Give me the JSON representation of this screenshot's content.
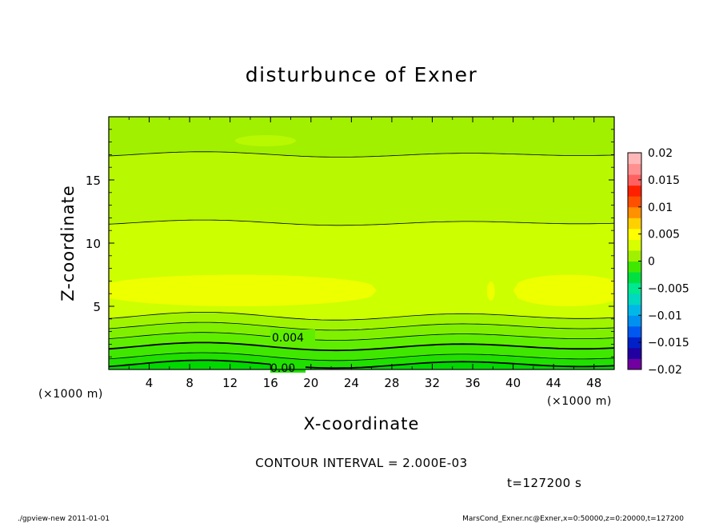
{
  "chart_data": {
    "type": "contour",
    "title": "disturbunce of Exner",
    "xlabel": "X-coordinate",
    "ylabel": "Z-coordinate",
    "x_unit_left": "(×1000 m)",
    "x_unit_right": "(×1000 m)",
    "xlim": [
      0,
      50
    ],
    "ylim": [
      0,
      20
    ],
    "xticks": [
      4,
      8,
      12,
      16,
      20,
      24,
      28,
      32,
      36,
      40,
      44,
      48
    ],
    "xtick_labels": [
      "4",
      "8",
      "12",
      "16",
      "20",
      "24",
      "28",
      "32",
      "36",
      "40",
      "44",
      "48"
    ],
    "yticks": [
      5,
      10,
      15
    ],
    "ytick_labels": [
      "5",
      "10",
      "15"
    ],
    "contour_labels": [
      "0.004",
      "0.00"
    ],
    "contour_interval_text": "CONTOUR INTERVAL = 2.000E-03",
    "time_text": "t=127200 s",
    "colorbar": {
      "range": [
        -0.02,
        0.02
      ],
      "tick_labels": [
        "0.02",
        "0.015",
        "0.01",
        "0.005",
        "0",
        "−0.005",
        "−0.01",
        "−0.015",
        "−0.02"
      ],
      "colors": [
        "#7000a0",
        "#2000a0",
        "#0020c8",
        "#0058f0",
        "#0090f0",
        "#00b8e8",
        "#00d8c0",
        "#00e890",
        "#00e040",
        "#40e800",
        "#a0f000",
        "#d8ff00",
        "#ffff00",
        "#ffd000",
        "#ff9000",
        "#ff5000",
        "#ff2000",
        "#ff6060",
        "#ff9090",
        "#ffb8b8"
      ]
    },
    "filled_bands_bottom_to_top": [
      {
        "top_z": 0.4,
        "color": "#00d800"
      },
      {
        "top_z": 1.0,
        "color": "#20e000"
      },
      {
        "top_z": 1.8,
        "color": "#40e800"
      },
      {
        "top_z": 2.6,
        "color": "#60ee00"
      },
      {
        "top_z": 3.4,
        "color": "#80f000"
      },
      {
        "top_z": 4.2,
        "color": "#a0f400"
      },
      {
        "top_z": 11.6,
        "color": "#ccff00"
      },
      {
        "top_z": 17.0,
        "color": "#b8f800"
      },
      {
        "top_z": 20.0,
        "color": "#a0f000"
      }
    ],
    "yellow_region_z": [
      5.0,
      7.5
    ],
    "yellow_color": "#eeff00"
  },
  "footer": {
    "left": "./gpview-new   2011-01-01",
    "right": "MarsCond_Exner.nc@Exner,x=0:50000,z=0:20000,t=127200"
  }
}
